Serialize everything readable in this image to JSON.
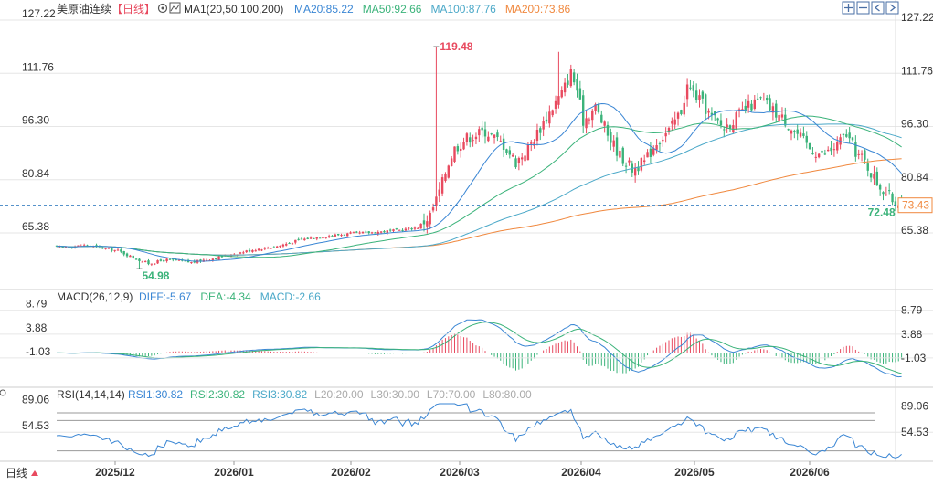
{
  "header": {
    "title": "美原油连续",
    "period": "【日线】",
    "ma_label": "MA1(20,50,100,200)",
    "ma_values": [
      {
        "label": "MA20:85.22",
        "color": "#3a86d4"
      },
      {
        "label": "MA50:92.66",
        "color": "#3bb37a"
      },
      {
        "label": "MA100:87.76",
        "color": "#4aa8c8"
      },
      {
        "label": "MA200:73.86",
        "color": "#f0883e"
      }
    ]
  },
  "colors": {
    "up": "#e84a5f",
    "down": "#3bb37a",
    "grid": "#e6e6e6",
    "ma20": "#3a86d4",
    "ma50": "#3bb37a",
    "ma100": "#4aa8c8",
    "ma200": "#f0883e"
  },
  "icons": [
    "gear-icon",
    "zoom-in-icon",
    "zoom-out-icon",
    "scroll-left-icon",
    "scroll-right-icon",
    "reset-icon"
  ],
  "price_panel": {
    "ticks": [
      "127.22",
      "111.76",
      "96.30",
      "80.84",
      "65.38"
    ],
    "high_label": "119.48",
    "low_label": "54.98",
    "last_label": "72.48",
    "current_badge": "73.43"
  },
  "macd_panel": {
    "label": "MACD(26,12,9)",
    "values": [
      {
        "label": "DIFF:-5.67",
        "color": "#3a86d4"
      },
      {
        "label": "DEA:-4.34",
        "color": "#3bb37a"
      },
      {
        "label": "MACD:-2.66",
        "color": "#4aa8c8"
      }
    ],
    "ticks": [
      "8.79",
      "3.88",
      "-1.03"
    ]
  },
  "rsi_panel": {
    "label": "RSI(14,14,14)",
    "values": [
      {
        "label": "RSI1:30.82",
        "color": "#3a86d4"
      },
      {
        "label": "RSI2:30.82",
        "color": "#3bb37a"
      },
      {
        "label": "RSI3:30.82",
        "color": "#4aa8c8"
      },
      {
        "label": "L20:20.00",
        "color": "#aaaaaa"
      },
      {
        "label": "L30:30.00",
        "color": "#aaaaaa"
      },
      {
        "label": "L70:70.00",
        "color": "#aaaaaa"
      },
      {
        "label": "L80:80.00",
        "color": "#aaaaaa"
      }
    ],
    "ticks": [
      "89.06",
      "54.53"
    ]
  },
  "x_axis": {
    "period_button": "日线",
    "dates": [
      "2025/12",
      "2026/01",
      "2026/02",
      "2026/03",
      "2026/04",
      "2026/05",
      "2026/06"
    ]
  },
  "chart_data": {
    "type": "candlestick",
    "title": "美原油连续",
    "ylim": [
      50,
      127.22
    ],
    "anchors": [
      [
        0,
        61.2
      ],
      [
        10,
        61.8
      ],
      [
        20,
        60.2
      ],
      [
        26,
        57.8
      ],
      [
        30,
        56.5
      ],
      [
        36,
        57.6
      ],
      [
        44,
        56.8
      ],
      [
        54,
        58.5
      ],
      [
        64,
        60.5
      ],
      [
        72,
        61.5
      ],
      [
        80,
        63.5
      ],
      [
        88,
        64.5
      ],
      [
        96,
        65.2
      ],
      [
        104,
        65.6
      ],
      [
        112,
        66.2
      ],
      [
        118,
        67.0
      ],
      [
        122,
        70.5
      ],
      [
        124,
        75
      ],
      [
        126,
        80
      ],
      [
        128,
        86
      ],
      [
        130,
        90
      ],
      [
        134,
        93
      ],
      [
        140,
        95
      ],
      [
        146,
        91
      ],
      [
        150,
        86
      ],
      [
        154,
        90
      ],
      [
        158,
        96
      ],
      [
        162,
        102
      ],
      [
        165,
        106
      ],
      [
        168,
        112
      ],
      [
        170,
        107
      ],
      [
        172,
        98
      ],
      [
        176,
        102
      ],
      [
        180,
        94
      ],
      [
        184,
        88
      ],
      [
        188,
        84
      ],
      [
        192,
        86
      ],
      [
        196,
        92
      ],
      [
        200,
        95
      ],
      [
        204,
        101
      ],
      [
        206,
        108
      ],
      [
        210,
        104
      ],
      [
        214,
        99
      ],
      [
        218,
        96
      ],
      [
        222,
        99
      ],
      [
        226,
        102
      ],
      [
        230,
        104
      ],
      [
        234,
        101
      ],
      [
        238,
        98
      ],
      [
        242,
        94
      ],
      [
        246,
        90
      ],
      [
        250,
        88
      ],
      [
        254,
        90
      ],
      [
        258,
        94
      ],
      [
        261,
        89
      ],
      [
        264,
        86
      ],
      [
        268,
        80
      ],
      [
        272,
        76
      ],
      [
        274,
        74
      ],
      [
        276,
        76
      ]
    ],
    "spikes": [
      {
        "index": 124,
        "high": 119.48
      },
      {
        "index": 164,
        "high": 118
      }
    ],
    "low_marker": {
      "index": 27,
      "value": 54.98
    },
    "ma_periods": [
      20,
      50,
      100,
      200
    ],
    "macd_range": [
      -6.5,
      9.3
    ],
    "rsi_range": [
      20,
      92
    ],
    "rsi_levels": [
      30,
      70,
      80
    ]
  }
}
